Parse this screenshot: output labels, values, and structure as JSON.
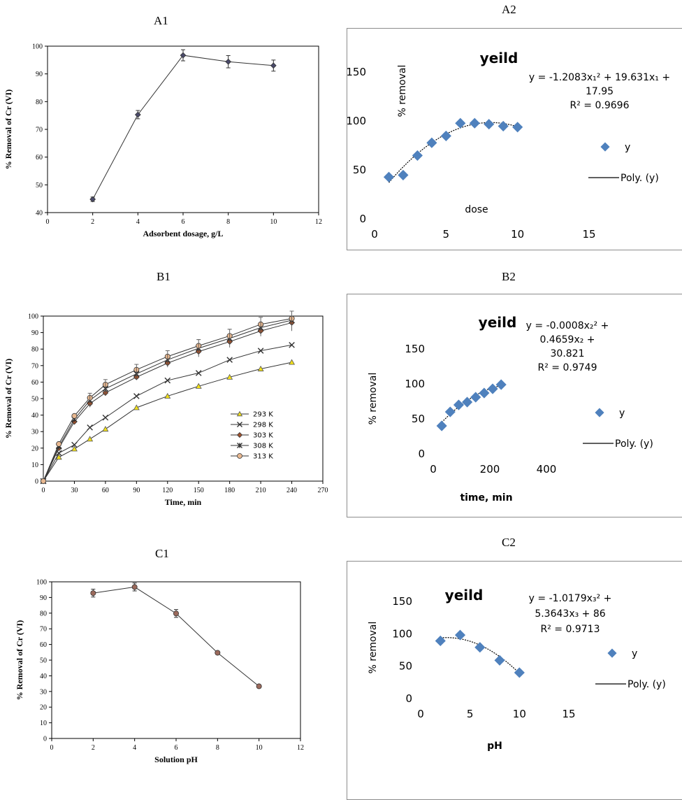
{
  "colors": {
    "axis": "#7a7a7a",
    "grid": "#d6d6d6",
    "line": "#000000",
    "marker_blue": "#4f81bd",
    "marker_a1": "#4a4a6a",
    "marker_yellow": "#f2e01a",
    "marker_brown": "#a0522d",
    "marker_tan": "#e8b890",
    "marker_c1": "#9b6a5c",
    "frame": "#8c8c8c"
  },
  "chart_data": [
    {
      "id": "A1",
      "panel_label": "A1",
      "type": "line",
      "style": "serif-line",
      "title": "",
      "xlabel": "Adsorbent dosage, g/L",
      "ylabel": "% Removal of Cr (VI)",
      "xlim": [
        0,
        12
      ],
      "ylim": [
        40,
        100
      ],
      "xticks": [
        0,
        2,
        4,
        6,
        8,
        10,
        12
      ],
      "yticks": [
        40,
        50,
        60,
        70,
        80,
        90,
        100
      ],
      "series": [
        {
          "x": [
            2,
            4,
            6,
            8,
            10
          ],
          "y": [
            44.8,
            75.3,
            96.7,
            94.4,
            93.0
          ],
          "err": [
            0.8,
            1.5,
            2.0,
            2.2,
            2.0
          ],
          "marker": "diamond",
          "color": "#4a4a6a"
        }
      ]
    },
    {
      "id": "A2",
      "panel_label": "A2",
      "type": "scatter",
      "style": "excel",
      "title": "yeild",
      "xlabel": "dose",
      "ylabel": "% removal",
      "xlim": [
        0,
        15
      ],
      "ylim": [
        0,
        150
      ],
      "xticks": [
        0,
        5,
        10,
        15
      ],
      "yticks": [
        0,
        50,
        100,
        150
      ],
      "equation": [
        "y = -1.2083x₁² + 19.631x₁ +",
        "17.95",
        "R² = 0.9696"
      ],
      "legend": [
        "y",
        "Poly. (y)"
      ],
      "fit": [
        -1.2083,
        19.631,
        17.95
      ],
      "fit_range": [
        1,
        10
      ],
      "points": {
        "x": [
          1,
          2,
          3,
          4,
          5,
          6,
          7,
          8,
          9,
          10
        ],
        "y": [
          42,
          44,
          64,
          77,
          84,
          97,
          97,
          96,
          94,
          93
        ]
      }
    },
    {
      "id": "B1",
      "panel_label": "B1",
      "type": "line",
      "style": "serif-line",
      "title": "",
      "xlabel": "Time, min",
      "ylabel": "% Removal of Cr (VI)",
      "xlim": [
        0,
        270
      ],
      "ylim": [
        0,
        100
      ],
      "xticks": [
        0,
        30,
        60,
        90,
        120,
        150,
        180,
        210,
        240,
        270
      ],
      "yticks": [
        0,
        10,
        20,
        30,
        40,
        50,
        60,
        70,
        80,
        90,
        100
      ],
      "legend_items": [
        "293 K",
        "298 K",
        "303 K",
        "308 K",
        "313 K"
      ],
      "series": [
        {
          "name": "293 K",
          "x": [
            0,
            15,
            30,
            45,
            60,
            90,
            120,
            150,
            180,
            210,
            240
          ],
          "y": [
            0,
            14.5,
            19.5,
            25.5,
            31.5,
            44.5,
            51.5,
            57.5,
            63.0,
            68.0,
            72.0
          ],
          "marker": "triangle",
          "color": "#f2e01a"
        },
        {
          "name": "298 K",
          "x": [
            0,
            15,
            30,
            45,
            60,
            90,
            120,
            150,
            180,
            210,
            240
          ],
          "y": [
            0,
            17.0,
            22.0,
            32.5,
            38.5,
            51.5,
            61.0,
            65.5,
            73.5,
            79.0,
            82.5
          ],
          "marker": "x",
          "color": "#333333"
        },
        {
          "name": "303 K",
          "x": [
            0,
            15,
            30,
            45,
            60,
            90,
            120,
            150,
            180,
            210,
            240
          ],
          "y": [
            0,
            20.0,
            36.0,
            47.0,
            53.5,
            63.0,
            71.5,
            78.5,
            84.5,
            91.0,
            96.0
          ],
          "marker": "diamond",
          "color": "#a0522d"
        },
        {
          "name": "308 K",
          "x": [
            0,
            15,
            30,
            45,
            60,
            90,
            120,
            150,
            180,
            210,
            240
          ],
          "y": [
            0,
            21.0,
            37.5,
            49.0,
            56.0,
            65.0,
            73.5,
            80.5,
            86.5,
            93.0,
            97.5
          ],
          "marker": "star",
          "color": "#333333"
        },
        {
          "name": "313 K",
          "x": [
            0,
            15,
            30,
            45,
            60,
            90,
            120,
            150,
            180,
            210,
            240
          ],
          "y": [
            0,
            22.5,
            39.5,
            50.5,
            58.5,
            67.5,
            75.5,
            82.0,
            88.0,
            95.0,
            98.5
          ],
          "marker": "circle",
          "color": "#e8b890"
        }
      ]
    },
    {
      "id": "B2",
      "panel_label": "B2",
      "type": "scatter",
      "style": "excel",
      "title": "yeild",
      "xlabel": "time, min",
      "ylabel": "% removal",
      "xlim": [
        0,
        400
      ],
      "ylim": [
        0,
        150
      ],
      "xticks": [
        0,
        200,
        400
      ],
      "yticks": [
        0,
        50,
        100,
        150
      ],
      "equation": [
        "y = -0.0008x₂² +",
        "0.4659x₂ +",
        "30.821",
        "R² = 0.9749"
      ],
      "legend": [
        "y",
        "Poly. (y)"
      ],
      "fit": [
        -0.0008,
        0.4659,
        30.821
      ],
      "fit_range": [
        30,
        240
      ],
      "points": {
        "x": [
          30,
          60,
          90,
          120,
          150,
          180,
          210,
          240
        ],
        "y": [
          39,
          59,
          69,
          73,
          80,
          86,
          92,
          98
        ]
      }
    },
    {
      "id": "C1",
      "panel_label": "C1",
      "type": "line",
      "style": "serif-line",
      "title": "",
      "xlabel": "Solution pH",
      "ylabel": "% Removal of Cr (VI)",
      "xlim": [
        0,
        12
      ],
      "ylim": [
        0,
        100
      ],
      "xticks": [
        0,
        2,
        4,
        6,
        8,
        10,
        12
      ],
      "yticks": [
        0,
        10,
        20,
        30,
        40,
        50,
        60,
        70,
        80,
        90,
        100
      ],
      "series": [
        {
          "x": [
            2,
            4,
            6,
            8,
            10
          ],
          "y": [
            92.8,
            96.7,
            79.8,
            54.7,
            33.3
          ],
          "err": [
            2.5,
            2.5,
            2.5,
            1.0,
            0.8
          ],
          "marker": "circle",
          "color": "#9b6a5c"
        }
      ]
    },
    {
      "id": "C2",
      "panel_label": "C2",
      "type": "scatter",
      "style": "excel",
      "title": "yeild",
      "xlabel": "pH",
      "ylabel": "% removal",
      "xlim": [
        0,
        15
      ],
      "ylim": [
        0,
        150
      ],
      "xticks": [
        0,
        5,
        10,
        15
      ],
      "yticks": [
        0,
        50,
        100,
        150
      ],
      "equation": [
        "y = -1.0179x₃² +",
        "5.3643x₃ + 86",
        "R² = 0.9713"
      ],
      "legend": [
        "y",
        "Poly. (y)"
      ],
      "fit": [
        -1.0179,
        5.3643,
        86
      ],
      "fit_range": [
        2,
        10
      ],
      "points": {
        "x": [
          2,
          4,
          6,
          8,
          10
        ],
        "y": [
          88,
          97,
          78,
          58,
          39
        ]
      }
    }
  ]
}
